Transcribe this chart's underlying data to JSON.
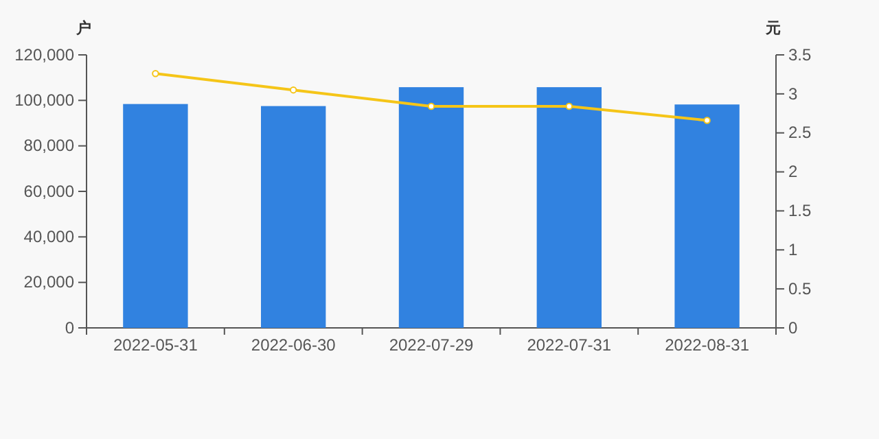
{
  "chart_data": {
    "type": "bar",
    "ylabel": "户",
    "y2label": "元",
    "categories": [
      "2022-05-31",
      "2022-06-30",
      "2022-07-29",
      "2022-07-31",
      "2022-08-31"
    ],
    "series": [
      {
        "color": "#3182e0",
        "values": [
          98400,
          97500,
          105800,
          105800,
          98200
        ]
      },
      {
        "type": "line",
        "axis": "y2",
        "color": "#f5c518",
        "values": [
          3.26,
          3.05,
          2.84,
          2.84,
          2.66
        ]
      }
    ],
    "ylim": [
      0,
      120000
    ],
    "yticks": [
      {
        "value": 0,
        "label": "0"
      },
      {
        "value": 20000,
        "label": "20,000"
      },
      {
        "value": 40000,
        "label": "40,000"
      },
      {
        "value": 60000,
        "label": "60,000"
      },
      {
        "value": 80000,
        "label": "80,000"
      },
      {
        "value": 100000,
        "label": "100,000"
      },
      {
        "value": 120000,
        "label": "120,000"
      }
    ],
    "y2lim": [
      0,
      3.5
    ],
    "y2ticks": [
      0,
      0.5,
      1,
      1.5,
      2,
      2.5,
      3,
      3.5
    ],
    "marker": "circle",
    "grid": false
  }
}
